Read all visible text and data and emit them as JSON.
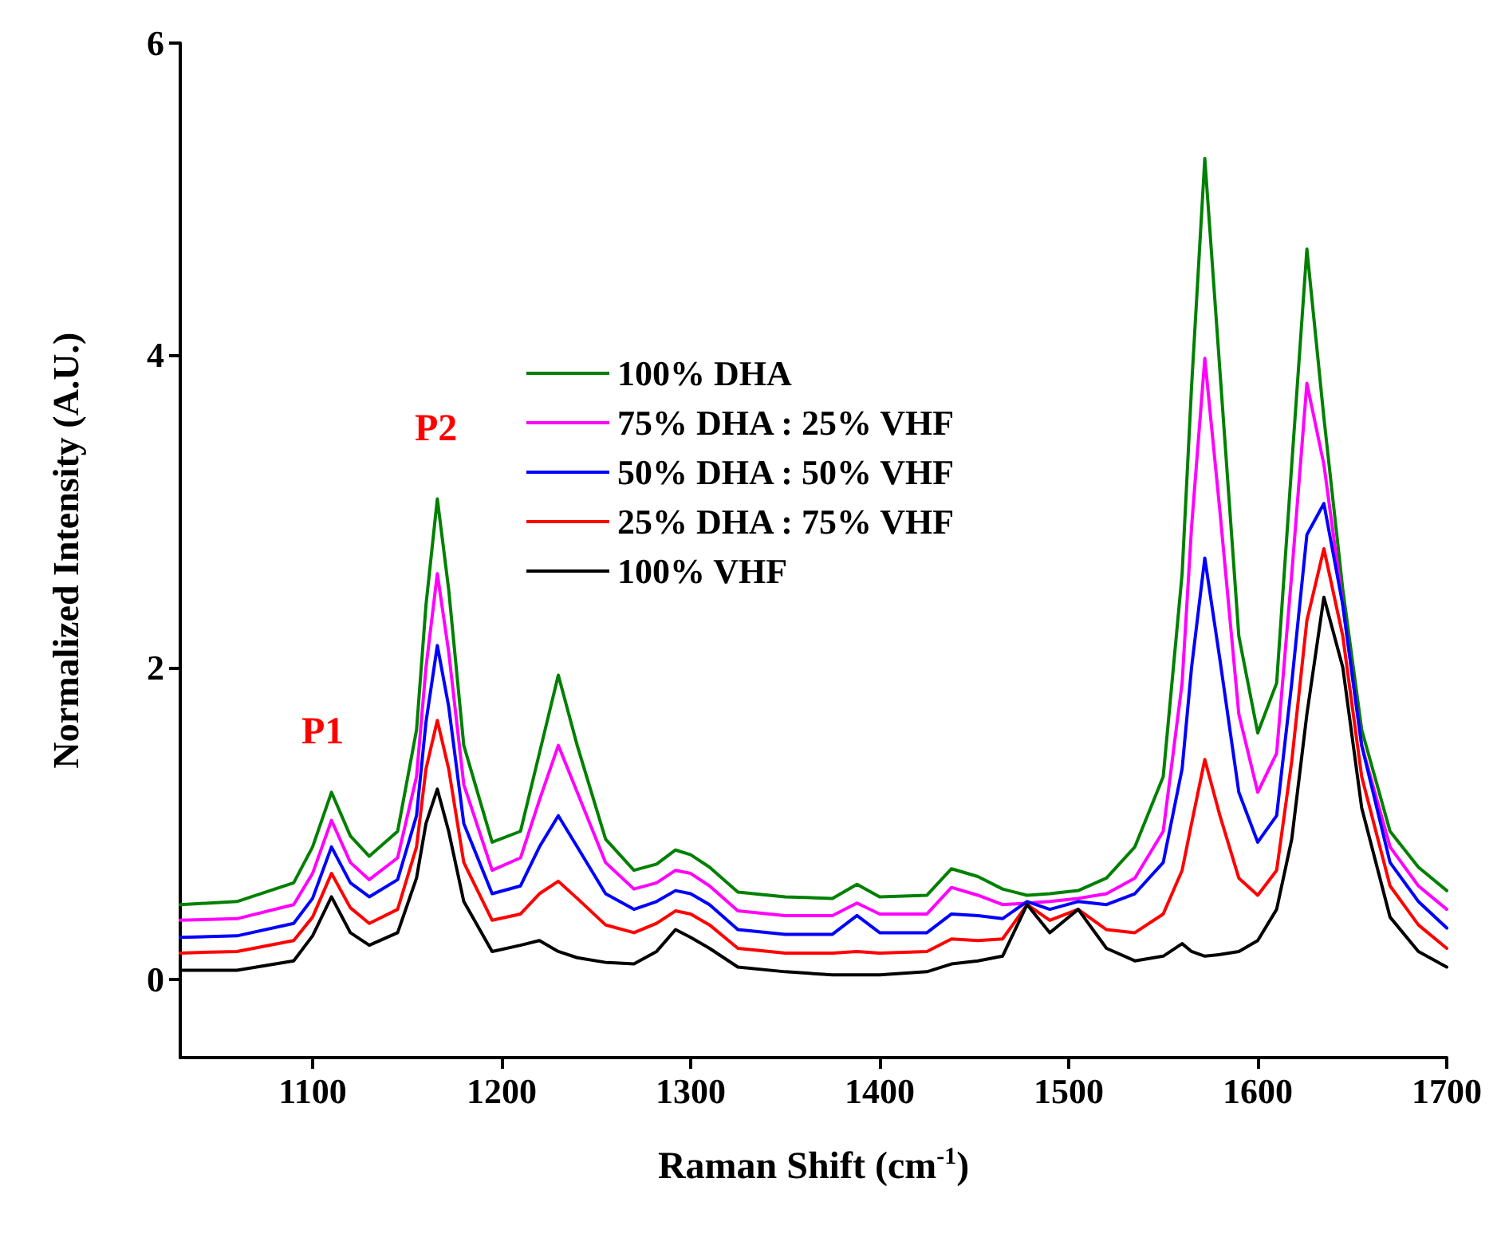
{
  "chart_data": {
    "type": "line",
    "xlabel": "Raman Shift (cm$^{-1}$)",
    "ylabel": "Normalized Intensity (A.U.)",
    "x": [
      1030,
      1060,
      1090,
      1100,
      1110,
      1120,
      1130,
      1145,
      1155,
      1160,
      1166,
      1172,
      1180,
      1195,
      1210,
      1220,
      1230,
      1240,
      1255,
      1270,
      1282,
      1292,
      1300,
      1310,
      1325,
      1350,
      1375,
      1388,
      1400,
      1425,
      1438,
      1452,
      1465,
      1478,
      1490,
      1505,
      1520,
      1535,
      1550,
      1560,
      1565,
      1572,
      1580,
      1590,
      1600,
      1610,
      1618,
      1626,
      1635,
      1645,
      1655,
      1670,
      1685,
      1700
    ],
    "series": [
      {
        "name": "100% DHA",
        "color": "#008000",
        "values": [
          0.48,
          0.5,
          0.62,
          0.85,
          1.2,
          0.92,
          0.79,
          0.95,
          1.6,
          2.4,
          3.08,
          2.5,
          1.5,
          0.88,
          0.95,
          1.45,
          1.95,
          1.5,
          0.9,
          0.7,
          0.74,
          0.83,
          0.8,
          0.72,
          0.56,
          0.53,
          0.52,
          0.61,
          0.53,
          0.54,
          0.71,
          0.66,
          0.58,
          0.54,
          0.55,
          0.57,
          0.65,
          0.85,
          1.3,
          2.6,
          3.8,
          5.26,
          3.9,
          2.2,
          1.58,
          1.9,
          3.3,
          4.68,
          3.6,
          2.5,
          1.6,
          0.95,
          0.72,
          0.57
        ]
      },
      {
        "name": "75% DHA : 25% VHF",
        "color": "#ff00ff",
        "values": [
          0.38,
          0.39,
          0.48,
          0.68,
          1.02,
          0.75,
          0.64,
          0.78,
          1.3,
          2.0,
          2.6,
          2.1,
          1.25,
          0.7,
          0.78,
          1.15,
          1.5,
          1.2,
          0.75,
          0.58,
          0.62,
          0.7,
          0.68,
          0.6,
          0.44,
          0.41,
          0.41,
          0.49,
          0.42,
          0.42,
          0.59,
          0.54,
          0.48,
          0.49,
          0.5,
          0.52,
          0.55,
          0.65,
          0.95,
          1.9,
          2.9,
          3.98,
          3.0,
          1.7,
          1.2,
          1.45,
          2.6,
          3.82,
          3.3,
          2.4,
          1.5,
          0.85,
          0.6,
          0.45
        ]
      },
      {
        "name": "50% DHA : 50% VHF",
        "color": "#0000ff",
        "values": [
          0.27,
          0.28,
          0.36,
          0.52,
          0.85,
          0.62,
          0.53,
          0.64,
          1.05,
          1.65,
          2.14,
          1.75,
          1.0,
          0.55,
          0.6,
          0.85,
          1.05,
          0.85,
          0.55,
          0.45,
          0.5,
          0.57,
          0.55,
          0.48,
          0.32,
          0.29,
          0.29,
          0.41,
          0.3,
          0.3,
          0.42,
          0.41,
          0.39,
          0.5,
          0.45,
          0.5,
          0.48,
          0.55,
          0.75,
          1.35,
          2.0,
          2.7,
          2.05,
          1.2,
          0.88,
          1.05,
          1.9,
          2.85,
          3.05,
          2.4,
          1.5,
          0.75,
          0.5,
          0.33
        ]
      },
      {
        "name": "25% DHA : 75% VHF",
        "color": "#ff0000",
        "values": [
          0.17,
          0.18,
          0.25,
          0.4,
          0.68,
          0.46,
          0.36,
          0.45,
          0.85,
          1.35,
          1.66,
          1.35,
          0.75,
          0.38,
          0.42,
          0.55,
          0.63,
          0.52,
          0.35,
          0.3,
          0.36,
          0.44,
          0.42,
          0.35,
          0.2,
          0.17,
          0.17,
          0.18,
          0.17,
          0.18,
          0.26,
          0.25,
          0.26,
          0.48,
          0.38,
          0.45,
          0.32,
          0.3,
          0.42,
          0.7,
          1.0,
          1.41,
          1.05,
          0.65,
          0.54,
          0.7,
          1.4,
          2.3,
          2.76,
          2.2,
          1.3,
          0.6,
          0.35,
          0.2
        ]
      },
      {
        "name": "100% VHF",
        "color": "#000000",
        "values": [
          0.06,
          0.06,
          0.12,
          0.28,
          0.53,
          0.3,
          0.22,
          0.3,
          0.65,
          1.0,
          1.22,
          0.95,
          0.5,
          0.18,
          0.22,
          0.25,
          0.18,
          0.14,
          0.11,
          0.1,
          0.18,
          0.32,
          0.27,
          0.2,
          0.08,
          0.05,
          0.03,
          0.03,
          0.03,
          0.05,
          0.1,
          0.12,
          0.15,
          0.48,
          0.3,
          0.45,
          0.2,
          0.12,
          0.15,
          0.23,
          0.18,
          0.15,
          0.16,
          0.18,
          0.25,
          0.45,
          0.9,
          1.7,
          2.45,
          2.0,
          1.1,
          0.4,
          0.18,
          0.08
        ]
      }
    ],
    "xlim": [
      1030,
      1700
    ],
    "xticks": [
      1100,
      1200,
      1300,
      1400,
      1500,
      1600,
      1700
    ],
    "ylim": [
      -0.5,
      6
    ],
    "yticks": [
      0,
      2,
      4,
      6
    ],
    "annotations": [
      "P1",
      "P2"
    ],
    "legend": "top",
    "grid": false,
    "marker": "none",
    "line_style": "solid"
  }
}
